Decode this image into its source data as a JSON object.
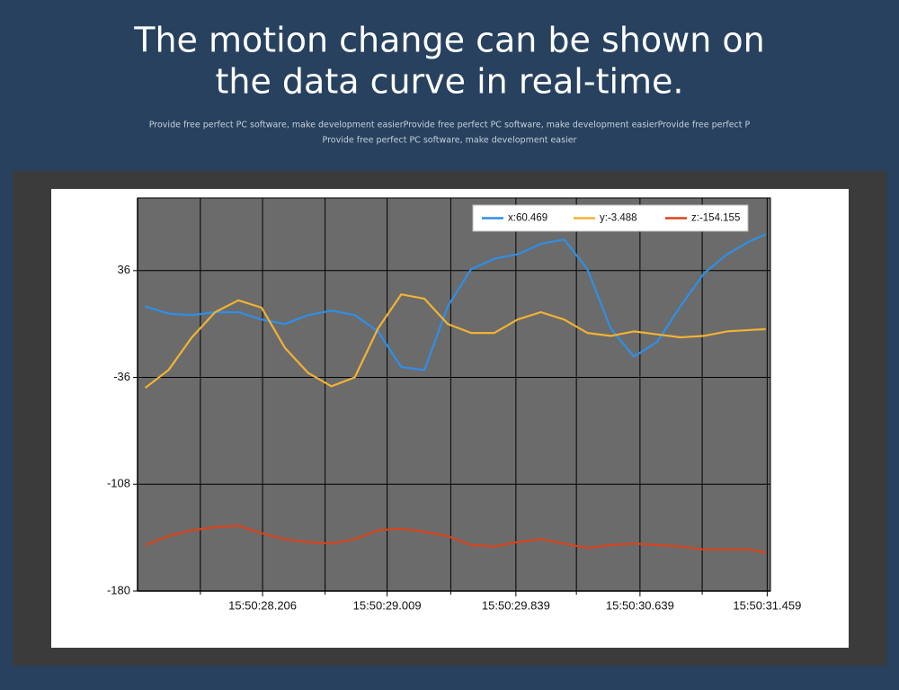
{
  "header": {
    "title_lines": [
      "The motion change can be shown on",
      "the data curve in real-time."
    ],
    "subtitle_lines": [
      "Provide free perfect PC software, make development easierProvide free perfect PC software, make development easierProvide free perfect P",
      "Provide free perfect PC software, make development easier"
    ]
  },
  "chart_data": {
    "type": "line",
    "x": [
      27.45,
      27.6,
      27.75,
      27.9,
      28.05,
      28.2,
      28.35,
      28.5,
      28.65,
      28.8,
      28.95,
      29.1,
      29.25,
      29.4,
      29.55,
      29.7,
      29.85,
      30.0,
      30.15,
      30.3,
      30.45,
      30.6,
      30.75,
      30.9,
      31.05,
      31.2,
      31.35,
      31.45
    ],
    "series": [
      {
        "name": "x:60.469",
        "color": "#2f8fe6",
        "values": [
          11.8,
          7,
          6,
          8,
          8,
          3,
          0,
          6,
          9,
          6,
          -5,
          -29,
          -31,
          12,
          37,
          44,
          47,
          54,
          57,
          37,
          -3,
          -22,
          -12,
          12,
          34,
          47,
          56,
          60.469
        ]
      },
      {
        "name": "y:-3.488",
        "color": "#f2b233",
        "values": [
          -43,
          -31,
          -9,
          8,
          16,
          11,
          -16,
          -33,
          -42,
          -36,
          -3,
          20,
          17,
          0,
          -6,
          -6,
          3,
          8,
          3,
          -6,
          -8,
          -5,
          -7,
          -9,
          -8,
          -5,
          -4,
          -3.488
        ]
      },
      {
        "name": "z:-154.155",
        "color": "#d9441c",
        "values": [
          -149,
          -143,
          -139,
          -137,
          -136,
          -141,
          -145,
          -147,
          -148,
          -145,
          -139,
          -138,
          -140,
          -143,
          -149,
          -150,
          -147,
          -145,
          -148,
          -151,
          -149,
          -148,
          -149,
          -150,
          -152,
          -152,
          -152,
          -154.155
        ]
      }
    ],
    "xlim": [
      27.4,
      31.48
    ],
    "xticks": [
      {
        "value": 28.206,
        "label": "15:50:28.206"
      },
      {
        "value": 29.009,
        "label": "15:50:29.009"
      },
      {
        "value": 29.839,
        "label": "15:50:29.839"
      },
      {
        "value": 30.639,
        "label": "15:50:30.639"
      },
      {
        "value": 31.459,
        "label": "15:50:31.459"
      }
    ],
    "xminorticks": [
      27.805,
      28.609,
      29.419,
      30.229,
      31.04
    ],
    "ylim": [
      -180,
      85
    ],
    "yticks": [
      36,
      -36,
      -108,
      -180
    ],
    "grid": true,
    "legend": "top"
  }
}
